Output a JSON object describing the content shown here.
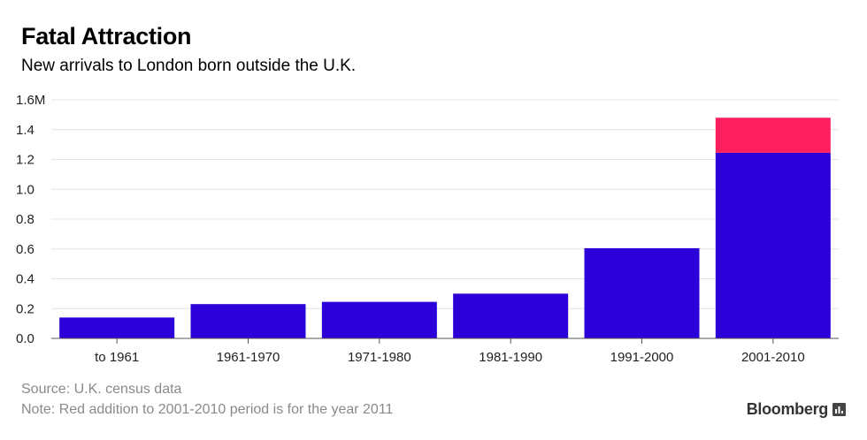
{
  "chart_data": {
    "type": "bar",
    "stacked": true,
    "title": "Fatal Attraction",
    "subtitle": "New arrivals to London born outside the U.K.",
    "categories": [
      "to 1961",
      "1961-1970",
      "1971-1980",
      "1981-1990",
      "1991-2000",
      "2001-2010"
    ],
    "series": [
      {
        "name": "Arrivals",
        "color": "#2b00d9",
        "values": [
          0.14,
          0.23,
          0.245,
          0.3,
          0.605,
          1.245
        ]
      },
      {
        "name": "Year 2011 addition",
        "color": "#ff1f5f",
        "values": [
          0,
          0,
          0,
          0,
          0,
          0.235
        ]
      }
    ],
    "ylim": [
      0,
      1.6
    ],
    "yticks": [
      0,
      0.2,
      0.4,
      0.6,
      0.8,
      1.0,
      1.2,
      1.4,
      1.6
    ],
    "ytick_labels": [
      "0.0",
      "0.2",
      "0.4",
      "0.6",
      "0.8",
      "1.0",
      "1.2",
      "1.4",
      "1.6M"
    ],
    "xlabel": "",
    "ylabel": "",
    "grid": true,
    "legend": "none"
  },
  "footer": {
    "source": "Source: U.K. census data",
    "note": "Note: Red addition to 2001-2010 period is for the year 2011"
  },
  "brand": {
    "name": "Bloomberg"
  }
}
